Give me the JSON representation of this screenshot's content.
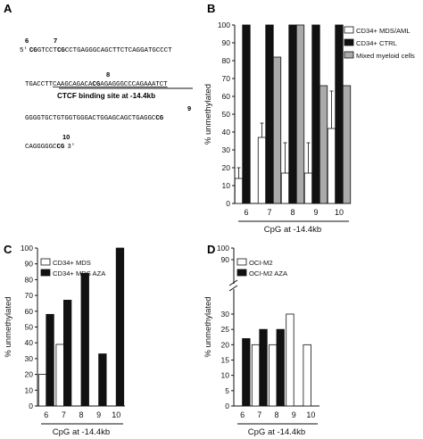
{
  "panels": {
    "a": {
      "letter": "A",
      "seq_line1": {
        "prime": "5'",
        "pre": "CG",
        "mid": "GTCCT",
        "cg2": "CG",
        "rest": "CCTGAGGGCAGCTTCTCAGGATGCCCT",
        "n1": "6",
        "n2": "7"
      },
      "seq_line2": {
        "pre": "TGACCTT",
        "underlined": "CAAGCAGACA",
        "cg": "CG",
        "underlined2": "AGAGGGCCCAGAAATCT",
        "n": "8"
      },
      "ctcf_label": "CTCF binding site at -14.4kb",
      "seq_line3": {
        "text": "GGGGTGCTGTGGTGGGACTGGAGCAGCTGAGGC",
        "cg": "CG",
        "n": "9"
      },
      "seq_line4": {
        "text": "CAGGGGGC",
        "cg": "CG",
        "end": "3'",
        "n": "10"
      }
    },
    "b": {
      "letter": "B"
    },
    "c": {
      "letter": "C"
    },
    "d": {
      "letter": "D"
    }
  },
  "chart_data": [
    {
      "panel": "B",
      "type": "bar",
      "categories": [
        "6",
        "7",
        "8",
        "9",
        "10"
      ],
      "series": [
        {
          "name": "CD34+ MDS/AML",
          "color": "#ffffff",
          "values": [
            14,
            37,
            17,
            17,
            42
          ],
          "errors": [
            6,
            8,
            17,
            17,
            21
          ]
        },
        {
          "name": "CD34+ CTRL",
          "color": "#111111",
          "values": [
            100,
            100,
            100,
            100,
            100
          ]
        },
        {
          "name": "Mixed myeloid cells",
          "color": "#aaaaaa",
          "values": [
            null,
            82,
            100,
            66,
            66
          ]
        }
      ],
      "ylabel": "% unmethylated",
      "xlabel": "CpG at -14.4kb",
      "yticks": [
        0,
        10,
        20,
        30,
        40,
        50,
        60,
        70,
        80,
        90,
        100
      ],
      "ylim": [
        0,
        100
      ],
      "legend": "top-right"
    },
    {
      "panel": "C",
      "type": "bar",
      "categories": [
        "6",
        "7",
        "8",
        "9",
        "10"
      ],
      "series": [
        {
          "name": "CD34+ MDS",
          "color": "#ffffff",
          "values": [
            20,
            39,
            null,
            null,
            null
          ]
        },
        {
          "name": "CD34+ MDS AZA",
          "color": "#111111",
          "values": [
            58,
            67,
            84,
            33,
            100
          ]
        }
      ],
      "ylabel": "% unmethylated",
      "xlabel": "CpG at -14.4kb",
      "yticks": [
        0,
        10,
        20,
        30,
        40,
        50,
        60,
        70,
        80,
        90,
        100
      ],
      "ylim": [
        0,
        100
      ],
      "legend": "top-left"
    },
    {
      "panel": "D",
      "type": "bar",
      "categories": [
        "6",
        "7",
        "8",
        "9",
        "10"
      ],
      "series": [
        {
          "name": "OCI-M2",
          "color": "#ffffff",
          "values": [
            null,
            20,
            20,
            30,
            20
          ]
        },
        {
          "name": "OCI-M2 AZA",
          "color": "#111111",
          "values": [
            22,
            25,
            25,
            null,
            null
          ]
        }
      ],
      "ylabel": "% unmethylated",
      "xlabel": "CpG at -14.4kb",
      "yticks_low": [
        0,
        5,
        10,
        15,
        20,
        25,
        30
      ],
      "yticks_high": [
        90,
        100
      ],
      "axis_break": true,
      "legend": "top-left"
    }
  ]
}
